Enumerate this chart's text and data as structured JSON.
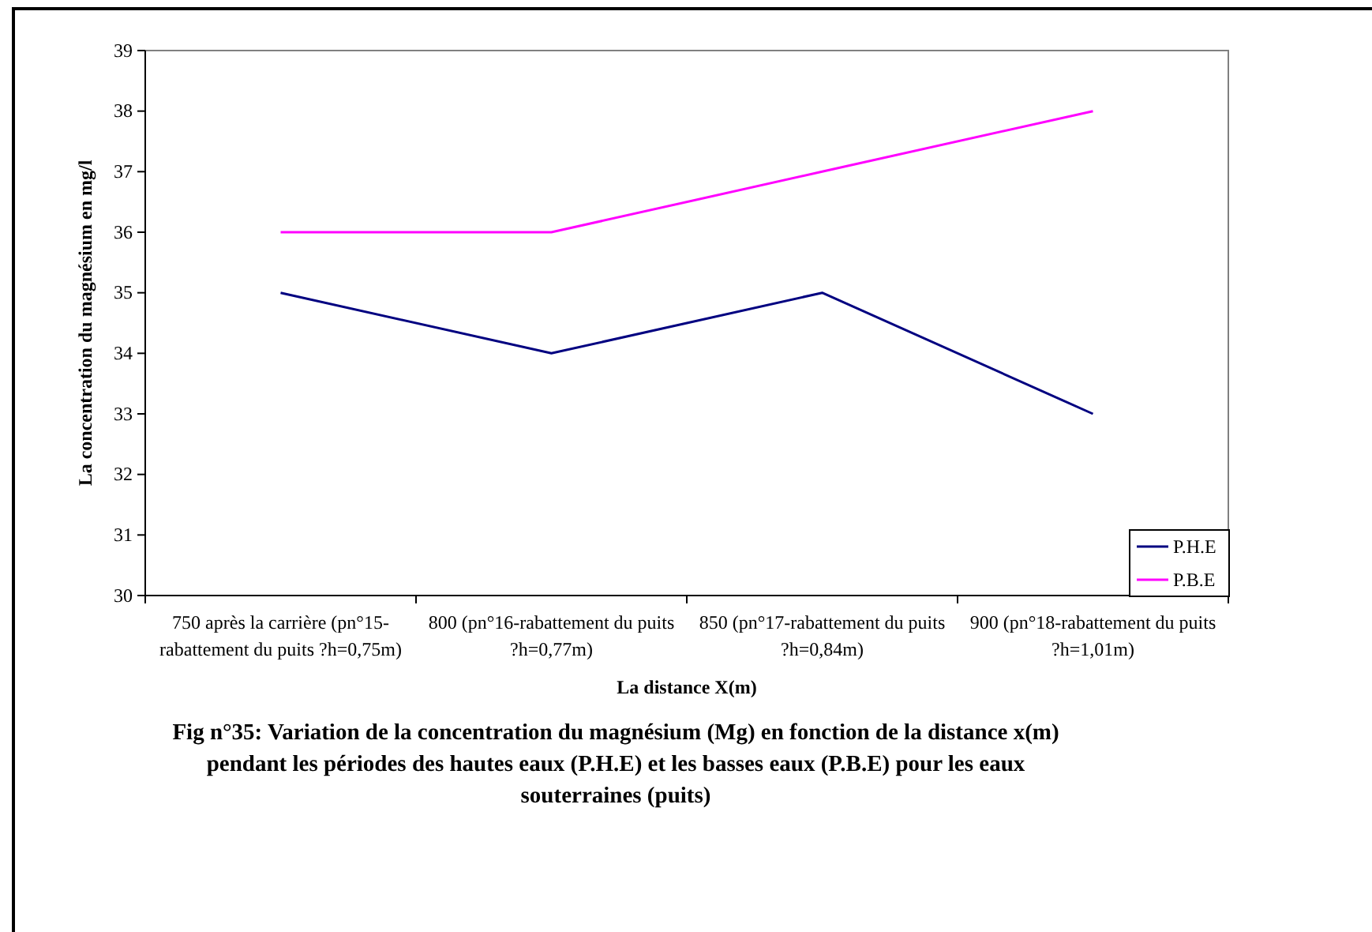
{
  "chart_data": {
    "type": "line",
    "title": "Fig n°35: Variation de la concentration du magnésium (Mg) en fonction de la distance x(m) pendant les périodes des hautes eaux (P.H.E) et les basses eaux (P.B.E) pour les eaux souterraines (puits)",
    "xlabel": "La distance X(m)",
    "ylabel": "La concentration du magnésium en mg/l",
    "categories": [
      "750 après la carrière (pn°15-rabattement du puits ?h=0,75m)",
      "800 (pn°16-rabattement du puits ?h=0,77m)",
      "850 (pn°17-rabattement du puits ?h=0,84m)",
      "900 (pn°18-rabattement du puits ?h=1,01m)"
    ],
    "series": [
      {
        "name": "P.H.E",
        "color": "#000080",
        "values": [
          35,
          34,
          35,
          33
        ]
      },
      {
        "name": "P.B.E",
        "color": "#ff00ff",
        "values": [
          36,
          36,
          37,
          38
        ]
      }
    ],
    "ylim": [
      30,
      39
    ],
    "yticks": [
      30,
      31,
      32,
      33,
      34,
      35,
      36,
      37,
      38,
      39
    ],
    "grid": false,
    "legend": "bottom right",
    "marker": "none",
    "line_style": "solid"
  }
}
